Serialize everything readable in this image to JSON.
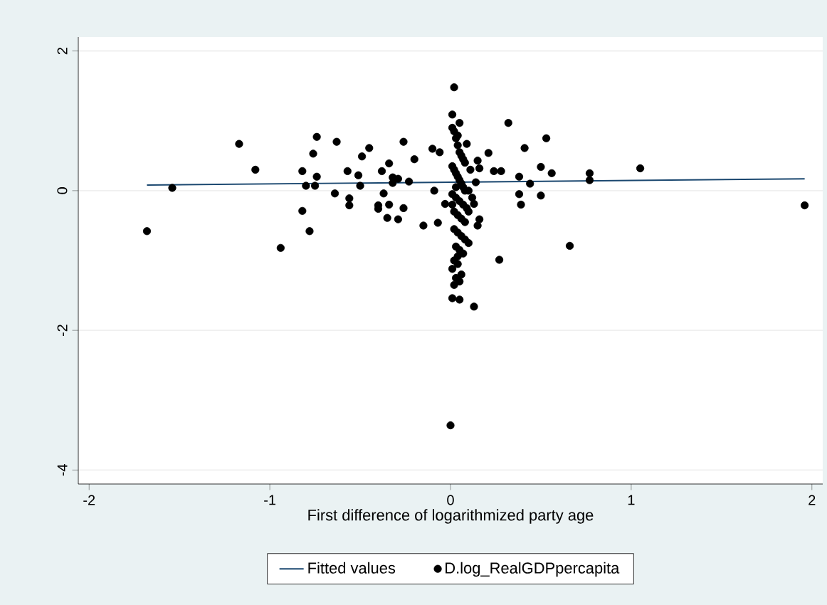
{
  "chart_data": {
    "type": "scatter",
    "xlabel": "First difference of logarithmized party age",
    "xlim": [
      -2.06,
      2.06
    ],
    "xticks": [
      -2,
      -1,
      0,
      1,
      2
    ],
    "ylim": [
      -4.2,
      2.2
    ],
    "yticks": [
      -4,
      -2,
      0,
      2
    ],
    "grid": "y",
    "legend": "bottom",
    "series": [
      {
        "name": "Fitted values",
        "type": "line",
        "marker": "none",
        "line_style": "solid",
        "color": "#1a476f",
        "x": [
          -1.68,
          1.96
        ],
        "values": [
          0.08,
          0.17
        ]
      },
      {
        "name": "D.log_RealGDPpercapita",
        "marker": "circle",
        "color": "#000000",
        "x": [
          -1.68,
          -1.54,
          -1.17,
          -1.08,
          -0.94,
          -0.82,
          -0.82,
          -0.8,
          -0.78,
          -0.76,
          -0.74,
          -0.74,
          -0.75,
          -0.64,
          -0.63,
          -0.57,
          -0.56,
          -0.56,
          -0.51,
          -0.5,
          -0.49,
          -0.45,
          -0.4,
          -0.4,
          -0.38,
          -0.37,
          -0.35,
          -0.34,
          -0.34,
          -0.32,
          -0.32,
          -0.29,
          -0.29,
          -0.26,
          -0.26,
          -0.23,
          -0.2,
          -0.15,
          -0.1,
          -0.09,
          -0.07,
          -0.06,
          -0.03,
          0.02,
          0.01,
          0.05,
          0.04,
          0.09,
          0.04,
          0.01,
          0.02,
          0.01,
          0.05,
          0.13,
          0.0,
          0.15,
          0.16,
          0.21,
          0.24,
          0.28,
          0.27,
          0.32,
          0.38,
          0.41,
          0.38,
          0.39,
          0.44,
          0.5,
          0.5,
          0.53,
          0.56,
          0.66,
          0.77,
          0.77,
          1.05,
          1.96,
          0.16,
          0.15,
          0.13,
          0.01,
          0.02,
          0.03,
          0.04,
          0.05,
          0.06,
          0.07,
          0.08,
          0.01,
          0.02,
          0.03,
          0.04,
          0.05,
          0.06,
          0.07,
          0.08,
          0.01,
          0.03,
          0.05,
          0.07,
          0.09,
          0.02,
          0.04,
          0.06,
          0.08,
          0.1,
          0.12,
          0.02,
          0.04,
          0.06,
          0.08,
          0.1,
          0.03,
          0.05,
          0.07,
          0.02,
          0.04,
          0.06,
          0.03,
          0.05,
          0.01,
          0.03,
          0.06,
          0.1,
          0.14,
          0.11
        ],
        "values": [
          -0.58,
          0.04,
          0.67,
          0.3,
          -0.82,
          0.28,
          -0.29,
          0.07,
          -0.58,
          0.53,
          0.77,
          0.2,
          0.07,
          -0.04,
          0.7,
          0.28,
          -0.11,
          -0.21,
          0.22,
          0.07,
          0.49,
          0.61,
          -0.21,
          -0.26,
          0.28,
          -0.04,
          -0.39,
          0.39,
          -0.2,
          0.19,
          0.11,
          0.17,
          -0.41,
          -0.25,
          0.7,
          0.13,
          0.45,
          -0.5,
          0.6,
          0.0,
          -0.46,
          0.55,
          -0.19,
          1.48,
          1.09,
          0.97,
          0.79,
          0.67,
          -0.94,
          -1.12,
          -1.35,
          -1.54,
          -1.56,
          -1.66,
          -3.36,
          0.43,
          0.32,
          0.54,
          0.28,
          0.28,
          -0.99,
          0.97,
          0.2,
          0.61,
          -0.05,
          -0.2,
          0.1,
          0.34,
          -0.07,
          0.75,
          0.25,
          -0.79,
          0.25,
          0.15,
          0.32,
          -0.21,
          -0.41,
          -0.5,
          -0.19,
          0.9,
          0.85,
          0.75,
          0.65,
          0.55,
          0.5,
          0.45,
          0.4,
          0.35,
          0.3,
          0.25,
          0.2,
          0.15,
          0.1,
          0.05,
          0.0,
          -0.05,
          -0.1,
          -0.15,
          -0.2,
          -0.25,
          -0.3,
          -0.35,
          -0.4,
          -0.45,
          -0.3,
          -0.1,
          -0.55,
          -0.6,
          -0.65,
          -0.7,
          -0.75,
          -0.8,
          -0.85,
          -0.9,
          -1.0,
          -1.05,
          -1.2,
          -1.25,
          -1.3,
          -0.2,
          0.05,
          0.1,
          0.0,
          0.12,
          0.3
        ]
      }
    ]
  }
}
